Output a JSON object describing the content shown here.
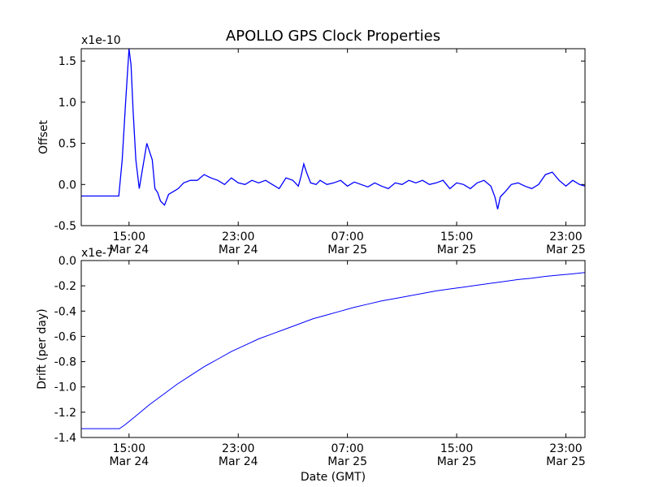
{
  "chart_data": [
    {
      "type": "line",
      "title": "APOLLO GPS Clock Properties",
      "ylabel": "Offset",
      "xlabel": "",
      "multiplier": "x1e-10",
      "ylim": [
        -0.5,
        1.65
      ],
      "yticks": [
        "-0.5",
        "0.0",
        "0.5",
        "1.0",
        "1.5"
      ],
      "yticks_values": [
        -0.5,
        0.0,
        0.5,
        1.0,
        1.5
      ],
      "xlim_hours": [
        11.5,
        48.4
      ],
      "xticks_hours": [
        15,
        23,
        31,
        39,
        47
      ],
      "xtick_labels": [
        {
          "time": "15:00",
          "date": "Mar 24"
        },
        {
          "time": "23:00",
          "date": "Mar 24"
        },
        {
          "time": "07:00",
          "date": "Mar 25"
        },
        {
          "time": "15:00",
          "date": "Mar 25"
        },
        {
          "time": "23:00",
          "date": "Mar 25"
        }
      ],
      "line_color": "#0000ff",
      "grid": false,
      "series": [
        {
          "x": [
            11.5,
            14.25,
            14.5,
            14.75,
            15.0,
            15.15,
            15.3,
            15.5,
            15.75,
            16.0,
            16.3,
            16.7,
            16.9,
            17.1,
            17.3,
            17.6,
            17.9,
            18.3,
            18.6,
            19.0,
            19.5,
            20.0,
            20.5,
            21.0,
            21.5,
            22.0,
            22.5,
            23.0,
            23.5,
            24.0,
            24.5,
            25.0,
            25.5,
            26.0,
            26.5,
            27.0,
            27.4,
            27.6,
            27.8,
            28.0,
            28.3,
            28.7,
            29.0,
            29.5,
            30.0,
            30.5,
            31.0,
            31.5,
            32.0,
            32.5,
            33.0,
            33.5,
            34.0,
            34.5,
            35.0,
            35.5,
            36.0,
            36.5,
            37.0,
            37.5,
            38.0,
            38.5,
            39.0,
            39.5,
            40.0,
            40.5,
            41.0,
            41.5,
            41.8,
            42.0,
            42.2,
            42.6,
            43.0,
            43.5,
            44.0,
            44.5,
            45.0,
            45.5,
            46.0,
            46.5,
            47.0,
            47.5,
            48.0,
            48.4
          ],
          "y": [
            -0.14,
            -0.14,
            0.3,
            1.0,
            1.65,
            1.45,
            0.9,
            0.3,
            -0.05,
            0.2,
            0.5,
            0.3,
            -0.05,
            -0.1,
            -0.2,
            -0.25,
            -0.12,
            -0.08,
            -0.05,
            0.02,
            0.05,
            0.05,
            0.12,
            0.08,
            0.05,
            0.0,
            0.08,
            0.02,
            0.0,
            0.05,
            0.02,
            0.05,
            0.0,
            -0.05,
            0.08,
            0.05,
            -0.02,
            0.1,
            0.25,
            0.15,
            0.02,
            0.0,
            0.05,
            0.0,
            0.02,
            0.05,
            -0.02,
            0.03,
            0.0,
            -0.03,
            0.02,
            -0.02,
            -0.05,
            0.02,
            0.0,
            0.05,
            0.02,
            0.05,
            0.0,
            0.02,
            0.05,
            -0.05,
            0.02,
            0.0,
            -0.05,
            0.02,
            0.05,
            -0.02,
            -0.15,
            -0.3,
            -0.15,
            -0.08,
            0.0,
            0.02,
            -0.02,
            -0.05,
            0.0,
            0.12,
            0.15,
            0.05,
            -0.02,
            0.05,
            0.0,
            -0.02
          ]
        }
      ]
    },
    {
      "type": "line",
      "title": "",
      "ylabel": "Drift (per day)",
      "xlabel": "Date (GMT)",
      "multiplier": "x1e-7",
      "ylim": [
        -1.4,
        0.0
      ],
      "yticks": [
        "-1.4",
        "-1.2",
        "-1.0",
        "-0.8",
        "-0.6",
        "-0.4",
        "-0.2",
        "0.0"
      ],
      "yticks_values": [
        -1.4,
        -1.2,
        -1.0,
        -0.8,
        -0.6,
        -0.4,
        -0.2,
        0.0
      ],
      "xlim_hours": [
        11.5,
        48.4
      ],
      "xticks_hours": [
        15,
        23,
        31,
        39,
        47
      ],
      "xtick_labels": [
        {
          "time": "15:00",
          "date": "Mar 24"
        },
        {
          "time": "23:00",
          "date": "Mar 24"
        },
        {
          "time": "07:00",
          "date": "Mar 25"
        },
        {
          "time": "15:00",
          "date": "Mar 25"
        },
        {
          "time": "23:00",
          "date": "Mar 25"
        }
      ],
      "line_color": "#0000ff",
      "grid": false,
      "series": [
        {
          "x": [
            11.5,
            12.5,
            13.5,
            14.3,
            14.7,
            15.5,
            16.5,
            17.5,
            18.5,
            19.5,
            20.5,
            21.5,
            22.5,
            23.5,
            24.5,
            25.5,
            26.5,
            27.5,
            28.5,
            29.5,
            30.5,
            31.5,
            32.5,
            33.5,
            34.5,
            35.5,
            36.5,
            37.5,
            38.5,
            39.5,
            40.5,
            41.5,
            42.5,
            43.5,
            44.5,
            45.5,
            46.5,
            47.5,
            48.4
          ],
          "y": [
            -1.33,
            -1.33,
            -1.33,
            -1.33,
            -1.3,
            -1.23,
            -1.14,
            -1.06,
            -0.98,
            -0.91,
            -0.84,
            -0.78,
            -0.72,
            -0.67,
            -0.62,
            -0.58,
            -0.54,
            -0.5,
            -0.46,
            -0.43,
            -0.4,
            -0.37,
            -0.345,
            -0.32,
            -0.3,
            -0.28,
            -0.26,
            -0.24,
            -0.225,
            -0.21,
            -0.195,
            -0.18,
            -0.165,
            -0.15,
            -0.14,
            -0.125,
            -0.115,
            -0.105,
            -0.095
          ]
        }
      ]
    }
  ]
}
